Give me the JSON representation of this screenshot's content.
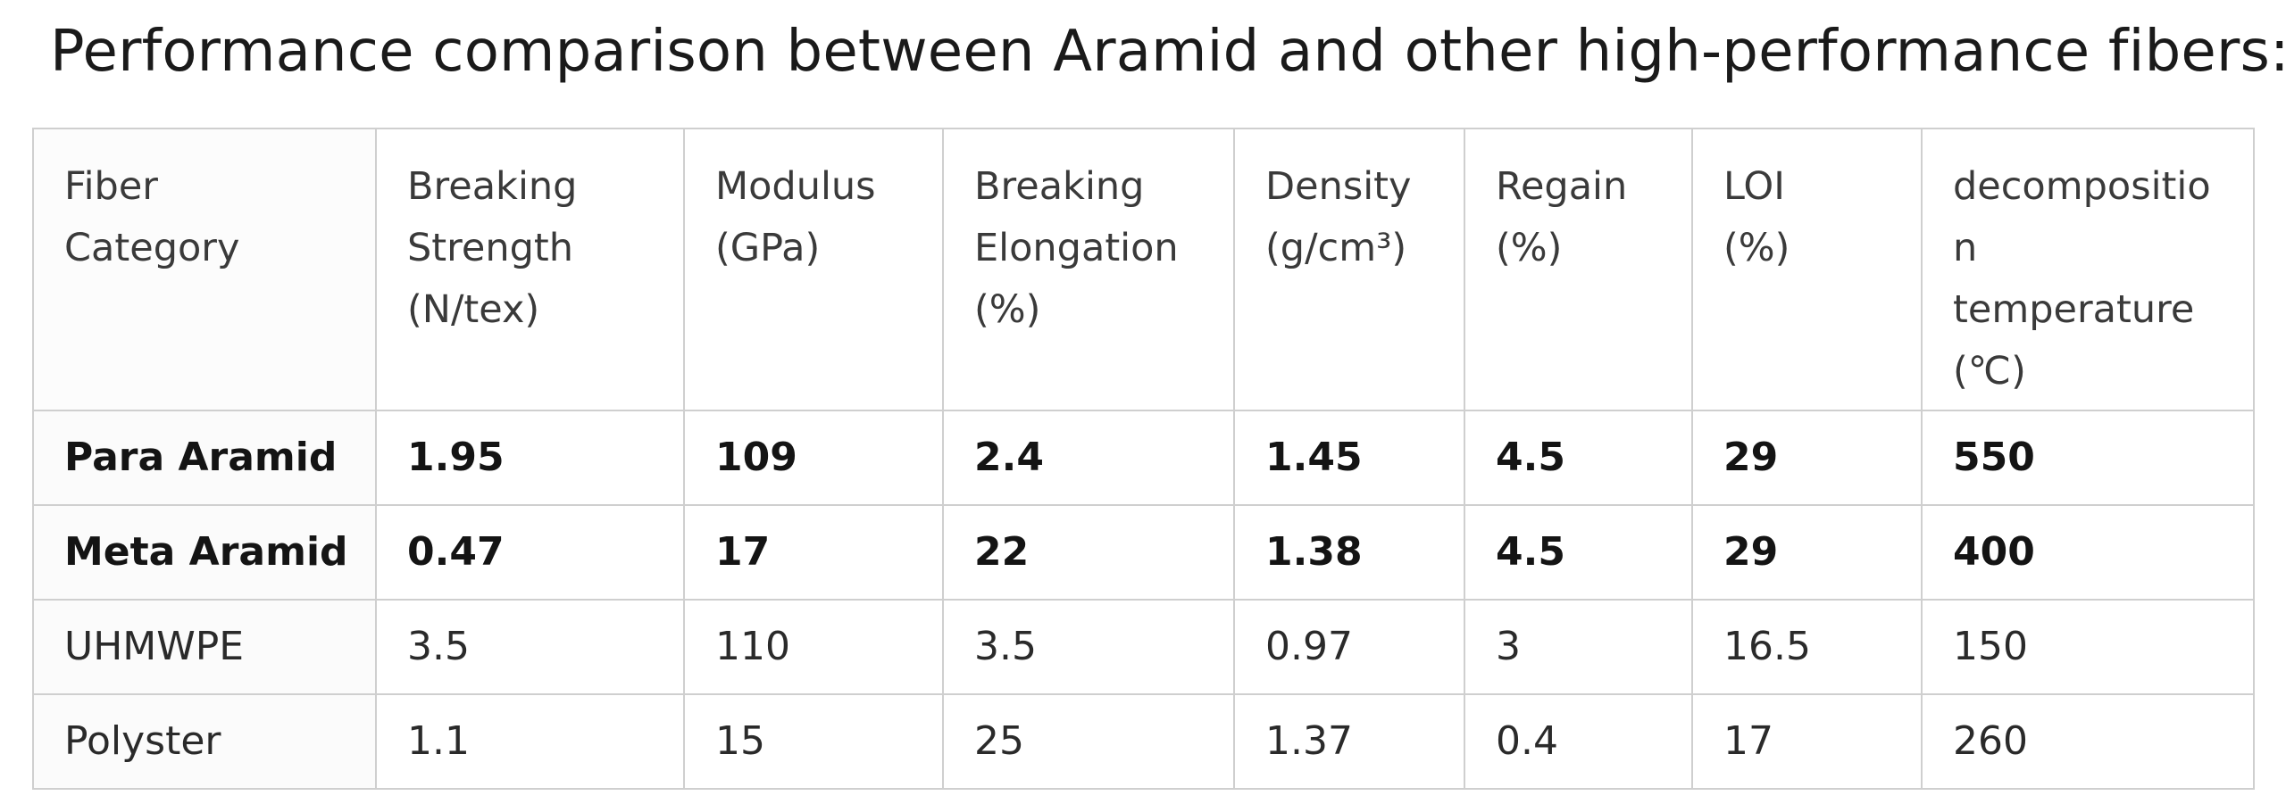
{
  "title": "Performance comparison between Aramid and other high-performance fibers:",
  "table": {
    "headers": [
      "Fiber\nCategory",
      "Breaking\nStrength\n(N/tex)",
      "Modulus\n(GPa)",
      "Breaking\nElongation\n(%)",
      "Density\n(g/cm³)",
      "Regain\n (%)",
      "LOI\n (%)",
      "decompositio\nn\ntemperature\n (℃)"
    ],
    "rows": [
      {
        "bold": true,
        "cells": [
          "Para Aramid",
          "1.95",
          "109",
          "2.4",
          "1.45",
          "4.5",
          "29",
          "550"
        ]
      },
      {
        "bold": true,
        "cells": [
          "Meta Aramid",
          "0.47",
          "17",
          "22",
          "1.38",
          "4.5",
          "29",
          "400"
        ]
      },
      {
        "bold": false,
        "cells": [
          "UHMWPE",
          "3.5",
          "110",
          "3.5",
          "0.97",
          "3",
          "16.5",
          "150"
        ]
      },
      {
        "bold": false,
        "cells": [
          "Polyster",
          "1.1",
          "15",
          "25",
          "1.37",
          "0.4",
          "17",
          "260"
        ]
      }
    ]
  }
}
